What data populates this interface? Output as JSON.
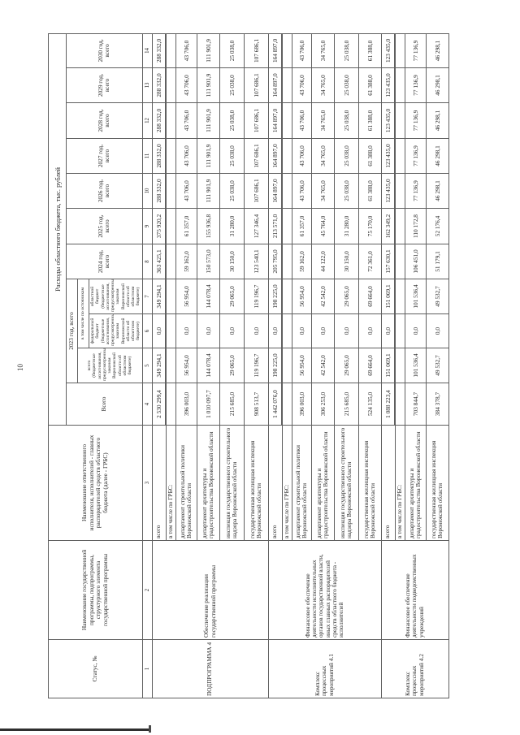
{
  "page": {
    "number": "10"
  },
  "table": {
    "title": "Расходы областного бюджета, тыс. рублей",
    "header": {
      "status": "Статус, №",
      "program": "Наименование государственной программы, подпрограммы, структурного элемента государственной программы",
      "grbs": "Наименование ответственного исполнителя, исполнителей - главных распорядителей средств областного бюджета (далее - ГРБС)",
      "total": "Всего",
      "y2023": "2023 год, всего",
      "y2023_total": "всего (бюджетные ассигнования, предусмотренные законом Воронежской области об областном бюджете)",
      "sources": "в том числе по источникам",
      "federal": "федеральный бюджет (бюджетные ассигнования, предусмотренные законом Воронежской области об областном бюджете)",
      "regional": "областной бюджет (бюджетные ассигнования, предусмотренные законом Воронежской области об областном бюджете)",
      "y2024": "2024 год, всего",
      "y2025": "2025 год, всего",
      "y2026": "2026 год, всего",
      "y2027": "2027 год, всего",
      "y2028": "2028 год, всего",
      "y2029": "2029 год, всего",
      "y2030": "2030 год, всего"
    },
    "col_numbers": [
      "1",
      "2",
      "3",
      "4",
      "5",
      "6",
      "7",
      "8",
      "9",
      "10",
      "11",
      "12",
      "13",
      "14"
    ],
    "rows": [
      {
        "type": "total",
        "section": {
          "status": "ПОДПРОГРАММА 4",
          "program": "Обеспечение реализации государственной программы",
          "span": 6
        },
        "grbs": "всего",
        "values": [
          "2 530 299,4",
          "349 294,1",
          "0,0",
          "349 294,1",
          "363 425,1",
          "375 920,2",
          "288 332,0",
          "288 332,0",
          "288 332,0",
          "288 332,0",
          "288 332,0"
        ]
      },
      {
        "type": "sub",
        "grbs": "в том числе по ГРБС:",
        "values": []
      },
      {
        "type": "dept",
        "grbs": "департамент строительной политики Воронежской области",
        "values": [
          "396 003,0",
          "56 954,0",
          "0,0",
          "56 954,0",
          "59 162,0",
          "61 357,0",
          "43 706,0",
          "43 706,0",
          "43 706,0",
          "43 706,0",
          "43 706,0"
        ]
      },
      {
        "type": "dept",
        "grbs": "департамент архитектуры и градостроительства Воронежской области",
        "values": [
          "1 010 097,7",
          "144 078,4",
          "0,0",
          "144 078,4",
          "150 573,0",
          "155 936,8",
          "111 901,9",
          "111 901,9",
          "111 901,9",
          "111 901,9",
          "111 901,9"
        ]
      },
      {
        "type": "dept",
        "grbs": "инспекция государственного строительного надзора Воронежской области",
        "values": [
          "215 685,0",
          "29 065,0",
          "0,0",
          "29 065,0",
          "30 150,0",
          "31 280,0",
          "25 038,0",
          "25 038,0",
          "25 038,0",
          "25 038,0",
          "25 038,0"
        ]
      },
      {
        "type": "dept",
        "grbs": "государственная жилищная инспекция Воронежской области",
        "values": [
          "908 513,7",
          "119 196,7",
          "0,0",
          "119 196,7",
          "123 540,1",
          "127 346,4",
          "107 686,1",
          "107 686,1",
          "107 686,1",
          "107 686,1",
          "107 686,1"
        ]
      },
      {
        "type": "total",
        "section": {
          "status": "Комплекс процессных мероприятий 4.1",
          "program": "Финансовое обеспечение деятельности исполнительных органов государственной власти, иных главных распорядителей средств областного бюджета - исполнителей",
          "span": 6
        },
        "grbs": "всего",
        "values": [
          "1 442 076,0",
          "198 225,0",
          "0,0",
          "198 225,0",
          "205 795,0",
          "213 571,0",
          "164 897,0",
          "164 897,0",
          "164 897,0",
          "164 897,0",
          "164 897,0"
        ]
      },
      {
        "type": "sub",
        "grbs": "в том числе по ГРБС:",
        "values": []
      },
      {
        "type": "dept",
        "grbs": "департамент строительной политики Воронежской области",
        "values": [
          "396 003,0",
          "56 954,0",
          "0,0",
          "56 954,0",
          "59 162,0",
          "61 357,0",
          "43 706,0",
          "43 706,0",
          "43 706,0",
          "43 706,0",
          "43 706,0"
        ]
      },
      {
        "type": "dept",
        "grbs": "департамент архитектуры и градостроительства Воронежской области",
        "values": [
          "306 253,0",
          "42 542,0",
          "0,0",
          "42 542,0",
          "44 122,0",
          "45 764,0",
          "34 765,0",
          "34 765,0",
          "34 765,0",
          "34 765,0",
          "34 765,0"
        ]
      },
      {
        "type": "dept",
        "grbs": "инспекция государственного строительного надзора Воронежской области",
        "values": [
          "215 685,0",
          "29 065,0",
          "0,0",
          "29 065,0",
          "30 150,0",
          "31 280,0",
          "25 038,0",
          "25 038,0",
          "25 038,0",
          "25 038,0",
          "25 038,0"
        ]
      },
      {
        "type": "dept",
        "grbs": "государственная жилищная инспекция Воронежской области",
        "values": [
          "524 135,0",
          "69 664,0",
          "0,0",
          "69 664,0",
          "72 361,0",
          "75 170,0",
          "61 388,0",
          "61 388,0",
          "61 388,0",
          "61 388,0",
          "61 388,0"
        ]
      },
      {
        "type": "total",
        "section": {
          "status": "Комплекс процессных мероприятий 4.2",
          "program": "Финансовое обеспечение деятельности подведомственных учреждений",
          "span": 4
        },
        "grbs": "всего",
        "values": [
          "1 088 223,4",
          "151 069,1",
          "0,0",
          "151 069,1",
          "157 630,1",
          "162 349,2",
          "123 435,0",
          "123 435,0",
          "123 435,0",
          "123 435,0",
          "123 435,0"
        ]
      },
      {
        "type": "sub",
        "grbs": "в том числе по ГРБС:",
        "values": []
      },
      {
        "type": "dept",
        "grbs": "департамент архитектуры и градостроительства Воронежской области",
        "values": [
          "703 844,7",
          "101 536,4",
          "0,0",
          "101 536,4",
          "106 451,0",
          "110 172,8",
          "77 136,9",
          "77 136,9",
          "77 136,9",
          "77 136,9",
          "77 136,9"
        ]
      },
      {
        "type": "dept",
        "grbs": "государственная жилищная инспекция Воронежской области",
        "values": [
          "384 378,7",
          "49 532,7",
          "0,0",
          "49 532,7",
          "51 179,1",
          "52 176,4",
          "46 298,1",
          "46 298,1",
          "46 298,1",
          "46 298,1",
          "46 298,1"
        ]
      }
    ]
  }
}
